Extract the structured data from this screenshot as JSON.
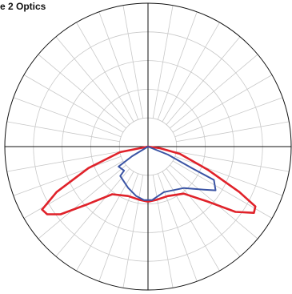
{
  "chart_data": {
    "type": "polar",
    "title": "e 2 Optics",
    "rlim": [
      0,
      5
    ],
    "rticks": [
      1,
      2,
      3,
      4,
      5
    ],
    "grid": true,
    "series": [
      {
        "name": null,
        "color": "#e0222a",
        "theta": [
          -90,
          -78.7,
          -70.2,
          -63.6,
          -59.3,
          -56.2,
          -52.3,
          -46.2,
          -36.9,
          -22.0,
          -8.5,
          0,
          8.5,
          22.0,
          37.3,
          47.4,
          53.3,
          58.0,
          60.9,
          63.6,
          68.9,
          77.3,
          82.4,
          90
        ],
        "values": [
          0,
          0.99,
          2.21,
          3.56,
          4.3,
          4.24,
          3.86,
          2.89,
          2.08,
          1.86,
          1.88,
          1.92,
          1.88,
          1.86,
          2.06,
          2.83,
          3.81,
          4.36,
          4.29,
          3.56,
          2.23,
          1.14,
          0.42,
          0
        ]
      },
      {
        "name": null,
        "color": "#3a54a4",
        "theta": [
          -90,
          -59.0,
          -55.9,
          -45.0,
          -43.4,
          -25.7,
          -13.6,
          -4.3,
          4.3,
          19.3,
          40.9,
          52.4,
          57.1,
          63.2,
          63.9,
          68.2,
          90
        ],
        "values": [
          0,
          0.65,
          1.24,
          1.18,
          1.41,
          1.6,
          1.77,
          1.87,
          1.87,
          1.68,
          1.91,
          2.46,
          2.81,
          2.58,
          1.7,
          0.75,
          0
        ]
      }
    ]
  }
}
